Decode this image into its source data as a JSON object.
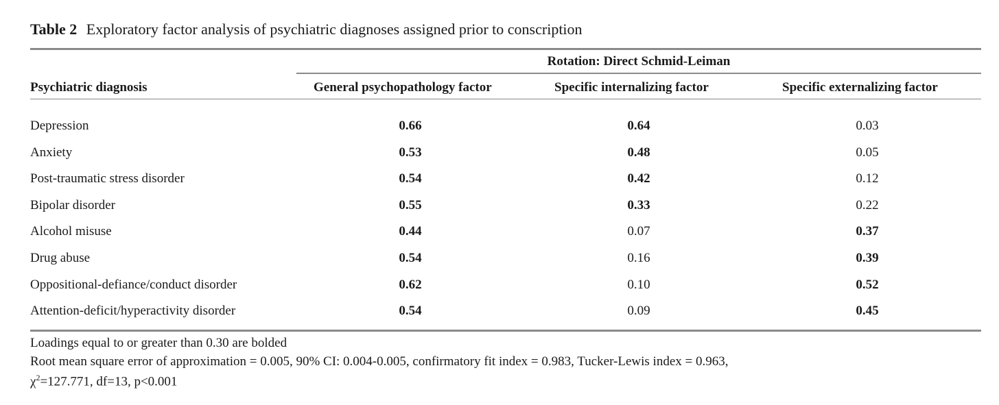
{
  "caption": {
    "label": "Table 2",
    "text": "Exploratory factor analysis of psychiatric diagnoses assigned prior to conscription"
  },
  "header": {
    "spanner": "Rotation: Direct Schmid-Leiman",
    "columns": [
      "Psychiatric diagnosis",
      "General psychopathology factor",
      "Specific internalizing factor",
      "Specific externalizing factor"
    ]
  },
  "rows": [
    {
      "name": "Depression",
      "values": [
        "0.66",
        "0.64",
        "0.03"
      ],
      "bold": [
        true,
        true,
        false
      ]
    },
    {
      "name": "Anxiety",
      "values": [
        "0.53",
        "0.48",
        "0.05"
      ],
      "bold": [
        true,
        true,
        false
      ]
    },
    {
      "name": "Post-traumatic stress disorder",
      "values": [
        "0.54",
        "0.42",
        "0.12"
      ],
      "bold": [
        true,
        true,
        false
      ]
    },
    {
      "name": "Bipolar disorder",
      "values": [
        "0.55",
        "0.33",
        "0.22"
      ],
      "bold": [
        true,
        true,
        false
      ]
    },
    {
      "name": "Alcohol misuse",
      "values": [
        "0.44",
        "0.07",
        "0.37"
      ],
      "bold": [
        true,
        false,
        true
      ]
    },
    {
      "name": "Drug abuse",
      "values": [
        "0.54",
        "0.16",
        "0.39"
      ],
      "bold": [
        true,
        false,
        true
      ]
    },
    {
      "name": "Oppositional-defiance/conduct disorder",
      "values": [
        "0.62",
        "0.10",
        "0.52"
      ],
      "bold": [
        true,
        false,
        true
      ]
    },
    {
      "name": "Attention-deficit/hyperactivity disorder",
      "values": [
        "0.54",
        "0.09",
        "0.45"
      ],
      "bold": [
        true,
        false,
        true
      ]
    }
  ],
  "footnotes": {
    "line1": "Loadings equal to or greater than 0.30 are bolded",
    "line2": "Root mean square error of approximation = 0.005, 90% CI: 0.004-0.005, confirmatory fit index = 0.983, Tucker-Lewis index = 0.963,",
    "line3_symbol": "χ",
    "line3_sup": "2",
    "line3_rest": "=127.771, df=13, p<0.001"
  }
}
